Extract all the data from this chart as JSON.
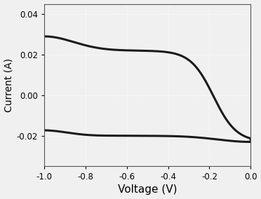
{
  "xlim": [
    -1.0,
    0.0
  ],
  "ylim": [
    -0.035,
    0.045
  ],
  "xticks": [
    -1.0,
    -0.8,
    -0.6,
    -0.4,
    -0.2,
    0.0
  ],
  "yticks": [
    -0.02,
    0.0,
    0.02,
    0.04
  ],
  "xlabel": "Voltage (V)",
  "ylabel": "Current (A)",
  "line_color": "#1a1a1a",
  "line_width": 2.2,
  "background_color": "#f0f0f0",
  "axes_background": "#f0f0f0",
  "grid_color": "#ffffff",
  "grid_linestyle": ":",
  "grid_linewidth": 0.8
}
